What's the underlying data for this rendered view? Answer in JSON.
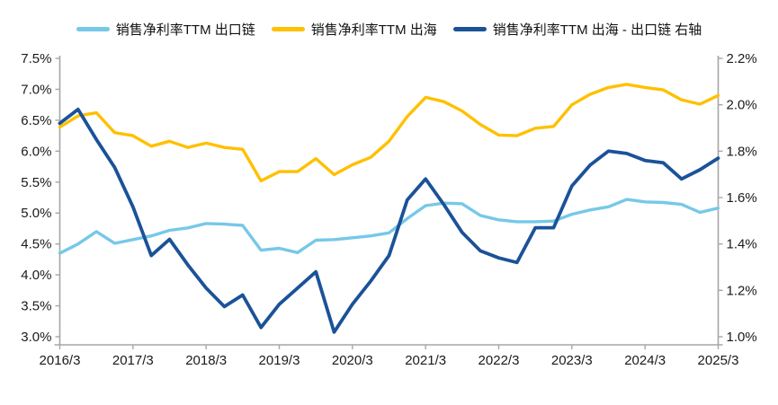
{
  "legend": [
    {
      "label": "销售净利率TTM 出口链",
      "color": "#76C8E8"
    },
    {
      "label": "销售净利率TTM 出海",
      "color": "#FFC000"
    },
    {
      "label": "销售净利率TTM 出海 - 出口链 右轴",
      "color": "#1B5298"
    }
  ],
  "chart_data": {
    "type": "line",
    "categories": [
      "2016/3",
      "2016/6",
      "2016/9",
      "2016/12",
      "2017/3",
      "2017/6",
      "2017/9",
      "2017/12",
      "2018/3",
      "2018/6",
      "2018/9",
      "2018/12",
      "2019/3",
      "2019/6",
      "2019/9",
      "2019/12",
      "2020/3",
      "2020/6",
      "2020/9",
      "2020/12",
      "2021/3",
      "2021/6",
      "2021/9",
      "2021/12",
      "2022/3",
      "2022/6",
      "2022/9",
      "2022/12",
      "2023/3",
      "2023/6",
      "2023/9",
      "2023/12",
      "2024/3",
      "2024/6",
      "2024/9",
      "2024/12",
      "2025/3"
    ],
    "x_tick_labels": [
      "2016/3",
      "2017/3",
      "2018/3",
      "2019/3",
      "2020/3",
      "2021/3",
      "2022/3",
      "2023/3",
      "2024/3",
      "2025/3"
    ],
    "x_label_every": 4,
    "series": [
      {
        "name": "销售净利率TTM 出口链",
        "axis": "left",
        "color": "#76C8E8",
        "width": 3.4,
        "values": [
          4.35,
          4.5,
          4.7,
          4.51,
          4.57,
          4.63,
          4.72,
          4.76,
          4.83,
          4.82,
          4.8,
          4.4,
          4.43,
          4.36,
          4.56,
          4.57,
          4.6,
          4.63,
          4.68,
          4.91,
          5.12,
          5.16,
          5.15,
          4.96,
          4.89,
          4.86,
          4.86,
          4.87,
          4.98,
          5.05,
          5.1,
          5.22,
          5.18,
          5.17,
          5.14,
          5.01,
          5.08
        ]
      },
      {
        "name": "销售净利率TTM 出海",
        "axis": "left",
        "color": "#FFC000",
        "width": 3.4,
        "values": [
          6.39,
          6.57,
          6.62,
          6.3,
          6.25,
          6.08,
          6.16,
          6.06,
          6.13,
          6.06,
          6.03,
          5.52,
          5.67,
          5.67,
          5.88,
          5.62,
          5.78,
          5.9,
          6.16,
          6.56,
          6.87,
          6.8,
          6.65,
          6.43,
          6.26,
          6.25,
          6.37,
          6.4,
          6.75,
          6.92,
          7.03,
          7.08,
          7.03,
          6.99,
          6.83,
          6.76,
          6.9
        ]
      },
      {
        "name": "销售净利率TTM 出海 - 出口链 右轴",
        "axis": "right",
        "color": "#1B5298",
        "width": 3.8,
        "values": [
          1.92,
          1.98,
          1.85,
          1.73,
          1.56,
          1.35,
          1.42,
          1.31,
          1.21,
          1.13,
          1.18,
          1.04,
          1.14,
          1.21,
          1.28,
          1.02,
          1.14,
          1.24,
          1.35,
          1.59,
          1.68,
          1.57,
          1.45,
          1.37,
          1.34,
          1.32,
          1.47,
          1.47,
          1.65,
          1.74,
          1.8,
          1.79,
          1.76,
          1.75,
          1.68,
          1.72,
          1.77
        ]
      }
    ],
    "left_axis": {
      "min": 3.0,
      "max": 7.5,
      "step": 0.5,
      "tick_labels": [
        "7.5%",
        "7.0%",
        "6.5%",
        "6.0%",
        "5.5%",
        "5.0%",
        "4.5%",
        "4.0%",
        "3.5%",
        "3.0%"
      ]
    },
    "right_axis": {
      "min": 1.0,
      "max": 2.2,
      "step": 0.2,
      "tick_labels": [
        "2.2%",
        "2.0%",
        "1.8%",
        "1.6%",
        "1.4%",
        "1.2%",
        "1.0%"
      ]
    },
    "title": "",
    "xlabel": "",
    "ylabel": "",
    "grid": false,
    "legend_position": "top",
    "axis_color": "#A6A6A6",
    "label_color": "#1a1a1a"
  }
}
